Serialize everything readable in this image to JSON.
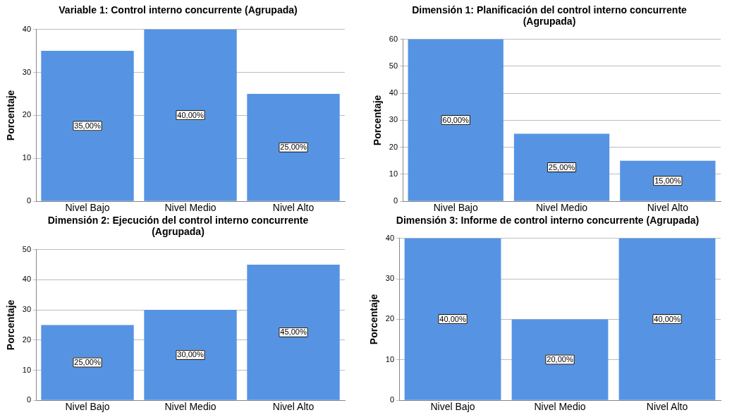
{
  "chart_data": [
    {
      "type": "bar",
      "title": "Variable 1: Control interno concurrente (Agrupada)",
      "ylabel": "Porcentaje",
      "categories": [
        "Nivel Bajo",
        "Nivel Medio",
        "Nivel Alto"
      ],
      "values": [
        35,
        40,
        25
      ],
      "value_labels": [
        "35,00%",
        "40,00%",
        "25,00%"
      ],
      "color": "#5694e3",
      "ylim": [
        0,
        40
      ],
      "yticks": [
        0,
        10,
        20,
        30,
        40
      ],
      "grid": "y"
    },
    {
      "type": "bar",
      "title": "Dimensión 1: Planificación del control interno concurrente (Agrupada)",
      "ylabel": "Porcentaje",
      "categories": [
        "Nivel Bajo",
        "Nivel Medio",
        "Nivel Alto"
      ],
      "values": [
        60,
        25,
        15
      ],
      "value_labels": [
        "60,00%",
        "25,00%",
        "15,00%"
      ],
      "color": "#5694e3",
      "ylim": [
        0,
        60
      ],
      "yticks": [
        0,
        10,
        20,
        30,
        40,
        50,
        60
      ],
      "grid": "y"
    },
    {
      "type": "bar",
      "title": "Dimensión 2: Ejecución del control interno concurrente (Agrupada)",
      "ylabel": "Porcentaje",
      "categories": [
        "Nivel Bajo",
        "Nivel Medio",
        "Nivel Alto"
      ],
      "values": [
        25,
        30,
        45
      ],
      "value_labels": [
        "25,00%",
        "30,00%",
        "45,00%"
      ],
      "color": "#5694e3",
      "ylim": [
        0,
        50
      ],
      "yticks": [
        0,
        10,
        20,
        30,
        40,
        50
      ],
      "grid": "y"
    },
    {
      "type": "bar",
      "title": "Dimensión 3: Informe de control interno concurrente (Agrupada)",
      "ylabel": "Porcentaje",
      "categories": [
        "Nivel Bajo",
        "Nivel Medio",
        "Nivel Alto"
      ],
      "values": [
        40,
        20,
        40
      ],
      "value_labels": [
        "40,00%",
        "20,00%",
        "40,00%"
      ],
      "color": "#5694e3",
      "ylim": [
        0,
        40
      ],
      "yticks": [
        0,
        10,
        20,
        30,
        40
      ],
      "grid": "y"
    }
  ]
}
